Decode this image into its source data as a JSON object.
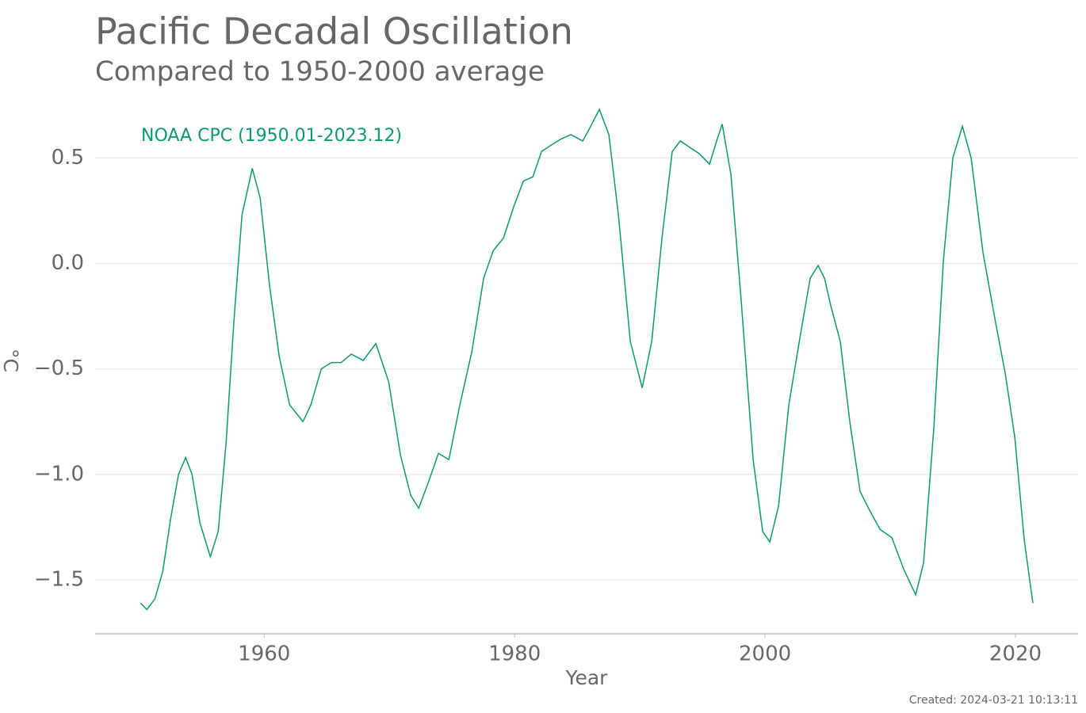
{
  "chart_data": {
    "type": "line",
    "title": "Pacific Decadal Oscillation",
    "subtitle": "Compared to 1950-2000 average",
    "x_label": "Year",
    "y_label": "°C",
    "footer": "Created: 2024-03-21 10:13:11",
    "xlim": [
      1946.5,
      2025
    ],
    "xticks": [
      1960,
      1980,
      2000,
      2020
    ],
    "ylim": [
      -1.755,
      0.76
    ],
    "yticks": [
      {
        "value": -1.5,
        "label": "−1.5"
      },
      {
        "value": -1.0,
        "label": "−1.0"
      },
      {
        "value": -0.5,
        "label": "−0.5"
      },
      {
        "value": 0,
        "label": "0.0"
      },
      0.5
    ],
    "grid": true,
    "x": [
      1950.13,
      1950.63,
      1951.27,
      1951.9,
      1952.53,
      1953.16,
      1953.73,
      1954.24,
      1954.87,
      1955.7,
      1956.33,
      1956.96,
      1957.6,
      1958.23,
      1959.05,
      1959.68,
      1960.44,
      1961.2,
      1962.03,
      1963.1,
      1963.73,
      1964.56,
      1965.38,
      1966.14,
      1966.96,
      1967.91,
      1968.92,
      1969.94,
      1970.89,
      1971.71,
      1972.34,
      1973.1,
      1973.92,
      1974.75,
      1975.63,
      1976.58,
      1977.53,
      1978.29,
      1979.11,
      1979.94,
      1980.7,
      1981.46,
      1982.15,
      1982.91,
      1983.73,
      1984.49,
      1985.44,
      1986.08,
      1986.77,
      1987.53,
      1988.29,
      1989.24,
      1990.19,
      1990.95,
      1991.77,
      1992.59,
      1993.23,
      1993.99,
      1994.75,
      1995.57,
      1996.08,
      1996.58,
      1997.28,
      1998.1,
      1999.05,
      1999.81,
      2000.38,
      2001.08,
      2001.9,
      2002.85,
      2003.61,
      2004.24,
      2004.75,
      2005.25,
      2006.01,
      2006.77,
      2007.59,
      2008.35,
      2009.18,
      2010.13,
      2011.08,
      2012.03,
      2012.66,
      2013.48,
      2014.24,
      2015.0,
      2015.76,
      2016.46,
      2017.41,
      2018.35,
      2019.18,
      2019.94,
      2020.7,
      2021.39
    ],
    "series": [
      {
        "name": "NOAA CPC (1950.01-2023.12)",
        "color": "#0a9a72",
        "values": [
          -1.61,
          -1.64,
          -1.59,
          -1.46,
          -1.21,
          -1.0,
          -0.92,
          -1.0,
          -1.23,
          -1.39,
          -1.27,
          -0.85,
          -0.26,
          0.23,
          0.45,
          0.31,
          -0.11,
          -0.44,
          -0.67,
          -0.75,
          -0.67,
          -0.5,
          -0.47,
          -0.47,
          -0.43,
          -0.46,
          -0.38,
          -0.56,
          -0.91,
          -1.1,
          -1.16,
          -1.04,
          -0.9,
          -0.93,
          -0.67,
          -0.42,
          -0.07,
          0.06,
          0.12,
          0.27,
          0.39,
          0.41,
          0.53,
          0.56,
          0.59,
          0.61,
          0.58,
          0.65,
          0.73,
          0.61,
          0.23,
          -0.37,
          -0.59,
          -0.37,
          0.12,
          0.53,
          0.58,
          0.55,
          0.52,
          0.47,
          0.57,
          0.66,
          0.42,
          -0.18,
          -0.93,
          -1.27,
          -1.32,
          -1.15,
          -0.67,
          -0.33,
          -0.07,
          -0.01,
          -0.07,
          -0.2,
          -0.37,
          -0.75,
          -1.08,
          -1.17,
          -1.26,
          -1.3,
          -1.45,
          -1.57,
          -1.42,
          -0.78,
          0.01,
          0.5,
          0.65,
          0.5,
          0.05,
          -0.26,
          -0.52,
          -0.82,
          -1.31,
          -1.61
        ]
      }
    ]
  }
}
